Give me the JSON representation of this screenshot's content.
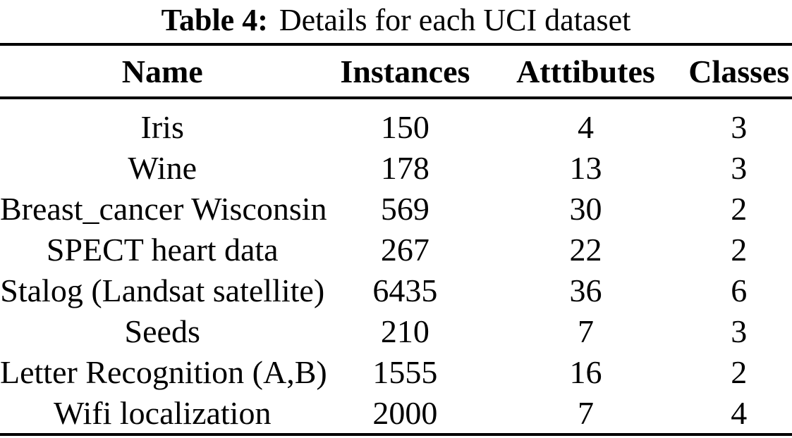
{
  "caption": {
    "label": "Table 4:",
    "text": "Details for each UCI dataset"
  },
  "columns": [
    "Name",
    "Instances",
    "Atttibutes",
    "Classes"
  ],
  "rows": [
    [
      "Iris",
      "150",
      "4",
      "3"
    ],
    [
      "Wine",
      "178",
      "13",
      "3"
    ],
    [
      "Breast_cancer Wisconsin",
      "569",
      "30",
      "2"
    ],
    [
      "SPECT heart data",
      "267",
      "22",
      "2"
    ],
    [
      "Stalog (Landsat satellite)",
      "6435",
      "36",
      "6"
    ],
    [
      "Seeds",
      "210",
      "7",
      "3"
    ],
    [
      "Letter Recognition (A,B)",
      "1555",
      "16",
      "2"
    ],
    [
      "Wifi localization",
      "2000",
      "7",
      "4"
    ]
  ],
  "colors": {
    "text": "#000000",
    "background": "#ffffff",
    "rule": "#000000"
  }
}
